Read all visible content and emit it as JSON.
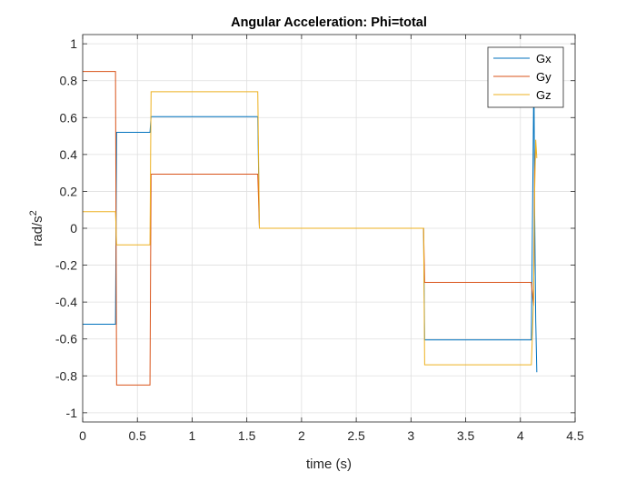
{
  "chart_data": {
    "type": "line",
    "title": "Angular Acceleration: Phi=total",
    "xlabel": "time (s)",
    "ylabel_base": "rad/s",
    "ylabel_sup": "2",
    "xlim": [
      0,
      4.5
    ],
    "ylim": [
      -1.05,
      1.05
    ],
    "xticks": [
      0,
      0.5,
      1,
      1.5,
      2,
      2.5,
      3,
      3.5,
      4,
      4.5
    ],
    "xtick_labels": [
      "0",
      "0.5",
      "1",
      "1.5",
      "2",
      "2.5",
      "3",
      "3.5",
      "4",
      "4.5"
    ],
    "yticks": [
      -1,
      -0.8,
      -0.6,
      -0.4,
      -0.2,
      0,
      0.2,
      0.4,
      0.6,
      0.8,
      1
    ],
    "ytick_labels": [
      "-1",
      "-0.8",
      "-0.6",
      "-0.4",
      "-0.2",
      "0",
      "0.2",
      "0.4",
      "0.6",
      "0.8",
      "1"
    ],
    "grid": true,
    "legend_position": "top-right",
    "series": [
      {
        "name": "Gx",
        "color": "#0072BD",
        "x": [
          0,
          0.3,
          0.31,
          0.615,
          0.625,
          1.6,
          1.615,
          3.115,
          3.125,
          4.1,
          4.12,
          4.125,
          4.13,
          4.14,
          4.15
        ],
        "y": [
          -0.52,
          -0.52,
          0.52,
          0.52,
          0.605,
          0.605,
          0,
          0,
          -0.605,
          -0.605,
          0.65,
          0.68,
          0.1,
          -0.5,
          -0.78
        ]
      },
      {
        "name": "Gy",
        "color": "#D95319",
        "x": [
          0,
          0.3,
          0.31,
          0.615,
          0.625,
          1.6,
          1.615,
          3.115,
          3.125,
          4.1,
          4.12,
          4.13,
          4.14
        ],
        "y": [
          0.85,
          0.85,
          -0.85,
          -0.85,
          0.293,
          0.293,
          0,
          0,
          -0.293,
          -0.293,
          -0.42,
          0.3,
          0.45
        ]
      },
      {
        "name": "Gz",
        "color": "#EDB120",
        "x": [
          0,
          0.3,
          0.31,
          0.615,
          0.625,
          1.6,
          1.615,
          3.115,
          3.125,
          4.1,
          4.12,
          4.13,
          4.14,
          4.15
        ],
        "y": [
          0.09,
          0.09,
          -0.09,
          -0.09,
          0.74,
          0.74,
          0,
          0,
          -0.74,
          -0.74,
          -0.4,
          0.2,
          0.48,
          0.38
        ]
      }
    ]
  }
}
